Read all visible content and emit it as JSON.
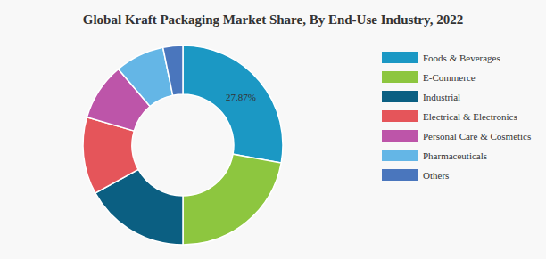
{
  "chart_data": {
    "type": "pie",
    "title": "Global Kraft Packaging Market Share, By End-Use Industry, 2022",
    "categories": [
      "Foods & Beverages",
      "E-Commerce",
      "Industrial",
      "Electrical & Electronics",
      "Personal Care & Cosmetics",
      "Pharmaceuticals",
      "Others"
    ],
    "values": [
      27.87,
      22.13,
      17,
      12.5,
      9.3,
      8,
      3.2
    ],
    "value_labels": [
      "27.87%",
      null,
      null,
      null,
      null,
      null,
      null
    ],
    "colors": [
      "#1b98c4",
      "#8dc63f",
      "#0b5f82",
      "#e5555a",
      "#bd55a9",
      "#64b6e6",
      "#4a76bd"
    ],
    "data_labels": true,
    "legend": "right"
  }
}
